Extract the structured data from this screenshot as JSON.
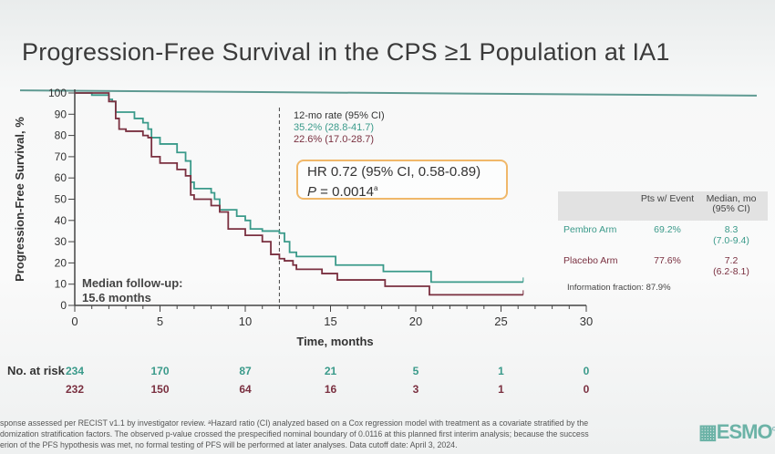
{
  "title": "Progression-Free Survival in the CPS ≥1 Population at IA1",
  "colors": {
    "pembro": "#3a9a8a",
    "placebo": "#7a3040",
    "accent": "#f0b86a"
  },
  "chart_data": {
    "type": "line",
    "title": "Progression-Free Survival in the CPS ≥1 Population at IA1",
    "xlabel": "Time, months",
    "ylabel": "Progression-Free Survival, %",
    "xlim": [
      0,
      30
    ],
    "ylim": [
      0,
      100
    ],
    "xticks": [
      0,
      5,
      10,
      15,
      20,
      25,
      30
    ],
    "yticks": [
      0,
      10,
      20,
      30,
      40,
      50,
      60,
      70,
      80,
      90,
      100
    ],
    "reference_line_x": 12,
    "series": [
      {
        "name": "Pembro Arm",
        "points": [
          [
            0,
            100
          ],
          [
            1,
            99
          ],
          [
            2,
            97
          ],
          [
            2.2,
            96
          ],
          [
            2.4,
            91
          ],
          [
            3.5,
            88
          ],
          [
            4,
            86
          ],
          [
            4.3,
            83
          ],
          [
            4.5,
            79
          ],
          [
            5,
            76
          ],
          [
            6,
            72
          ],
          [
            6.5,
            68
          ],
          [
            6.8,
            58
          ],
          [
            7,
            55
          ],
          [
            8,
            53
          ],
          [
            8.2,
            50
          ],
          [
            8.5,
            45
          ],
          [
            9.5,
            42
          ],
          [
            10,
            40
          ],
          [
            10.3,
            36
          ],
          [
            11,
            35
          ],
          [
            12,
            34
          ],
          [
            12.3,
            30
          ],
          [
            12.6,
            25
          ],
          [
            13,
            23
          ],
          [
            15.3,
            19
          ],
          [
            18.1,
            16
          ],
          [
            20.9,
            11
          ],
          [
            26.3,
            11
          ]
        ]
      },
      {
        "name": "Placebo Arm",
        "points": [
          [
            0,
            100
          ],
          [
            2,
            96
          ],
          [
            2.4,
            88
          ],
          [
            2.6,
            83
          ],
          [
            3,
            82
          ],
          [
            4,
            80
          ],
          [
            4.3,
            79
          ],
          [
            4.5,
            70
          ],
          [
            5,
            67
          ],
          [
            6,
            64
          ],
          [
            6.5,
            61
          ],
          [
            6.8,
            52
          ],
          [
            7,
            50
          ],
          [
            8,
            47
          ],
          [
            8.5,
            44
          ],
          [
            9,
            36
          ],
          [
            10,
            33
          ],
          [
            11,
            30
          ],
          [
            11.5,
            24
          ],
          [
            12,
            22
          ],
          [
            12.3,
            21
          ],
          [
            12.8,
            19
          ],
          [
            13,
            17
          ],
          [
            14.5,
            15
          ],
          [
            15.4,
            12
          ],
          [
            18.2,
            9
          ],
          [
            20.8,
            5
          ],
          [
            26.3,
            5
          ]
        ]
      }
    ]
  },
  "rate_box": {
    "header": "12-mo rate (95% CI)",
    "pembro": "35.2% (28.8-41.7)",
    "placebo": "22.6% (17.0-28.7)"
  },
  "hr_box": {
    "line1": "HR 0.72 (95% CI, 0.58-0.89)",
    "p_label": "P",
    "p_value": " = 0.0014",
    "p_sup": "a"
  },
  "followup": {
    "line1": "Median follow-up:",
    "line2": "15.6 months"
  },
  "summary_table": {
    "headers": [
      "Pts w/ Event",
      "Median, mo (95% CI)"
    ],
    "rows": [
      {
        "arm": "Pembro Arm",
        "event": "69.2%",
        "median": "8.3",
        "ci": "(7.0-9.4)"
      },
      {
        "arm": "Placebo Arm",
        "event": "77.6%",
        "median": "7.2",
        "ci": "(6.2-8.1)"
      }
    ],
    "info": "Information fraction: 87.9%"
  },
  "risk": {
    "label": "No. at risk",
    "pembro": [
      "234",
      "170",
      "87",
      "21",
      "5",
      "1",
      "0"
    ],
    "placebo": [
      "232",
      "150",
      "64",
      "16",
      "3",
      "1",
      "0"
    ]
  },
  "footnote": [
    "sponse assessed per RECIST v1.1 by investigator review. ᵃHazard ratio (CI) analyzed based on a Cox regression model with treatment as a covariate stratified by the",
    "domization stratification factors. The observed p-value crossed the prespecified nominal boundary of 0.0116 at this planned first interim analysis; because the success",
    "erion of the PFS hypothesis was met, no formal testing of PFS will be performed at later analyses. Data cutoff date: April 3, 2024."
  ],
  "logo": "ESMO"
}
